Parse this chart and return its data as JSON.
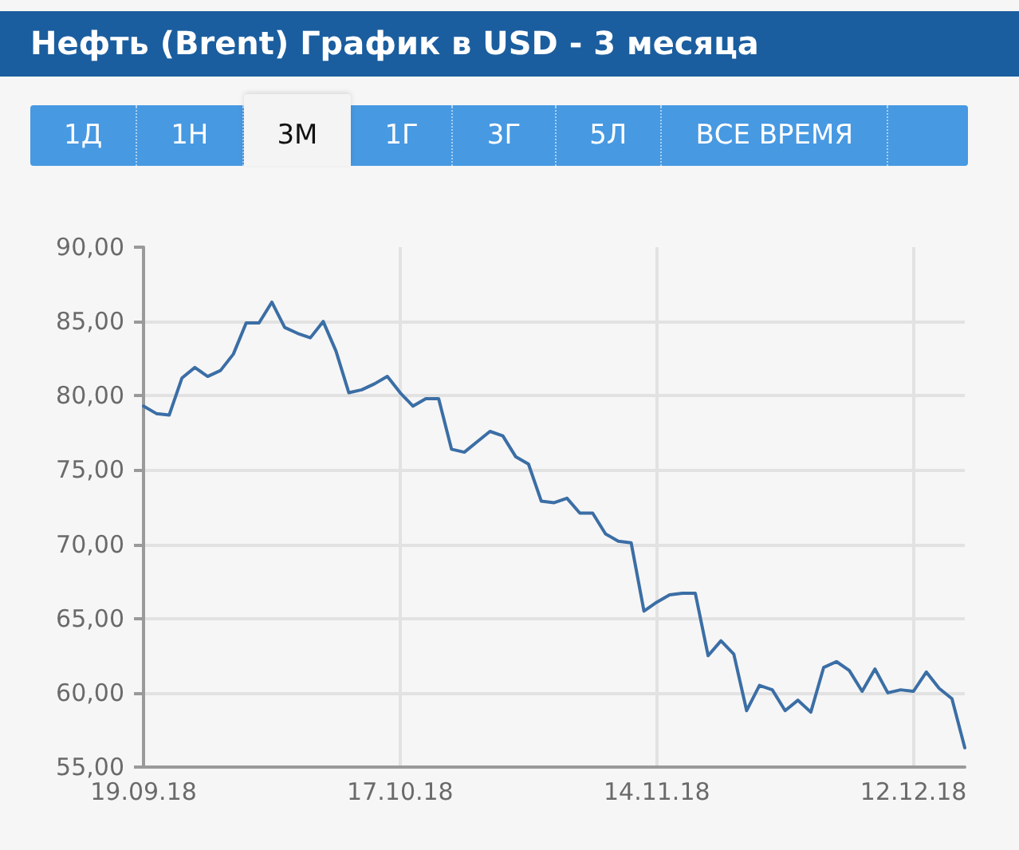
{
  "chart_data": {
    "type": "line",
    "title": "Нефть (Brent) График в USD - 3 месяца",
    "annotations": [
      "1Д",
      "1Н",
      "3М",
      "1Г",
      "3Г",
      "5Л",
      "ВСЕ ВРЕМЯ"
    ],
    "categories": [
      "19.09.18",
      null,
      null,
      null,
      null,
      null,
      null,
      null,
      null,
      null,
      null,
      null,
      null,
      null,
      null,
      null,
      null,
      null,
      null,
      null,
      "17.10.18",
      null,
      null,
      null,
      null,
      null,
      null,
      null,
      null,
      null,
      null,
      null,
      null,
      null,
      null,
      null,
      null,
      null,
      null,
      null,
      "14.11.18",
      null,
      null,
      null,
      null,
      null,
      null,
      null,
      null,
      null,
      null,
      null,
      null,
      null,
      null,
      null,
      null,
      null,
      null,
      null,
      "12.12.18",
      null,
      null,
      null,
      null
    ],
    "color": "#3b6ea5",
    "values": [
      79.3,
      78.8,
      78.7,
      81.2,
      81.9,
      81.3,
      81.7,
      82.8,
      84.9,
      84.9,
      86.3,
      84.6,
      84.2,
      83.9,
      85.0,
      83.0,
      80.2,
      80.4,
      80.8,
      81.3,
      80.2,
      79.3,
      79.8,
      79.8,
      76.4,
      76.2,
      76.9,
      77.6,
      77.3,
      75.9,
      75.4,
      72.9,
      72.8,
      73.1,
      72.1,
      72.1,
      70.7,
      70.2,
      70.1,
      65.5,
      66.1,
      66.6,
      66.7,
      66.7,
      62.5,
      63.5,
      62.6,
      58.8,
      60.5,
      60.2,
      58.8,
      59.5,
      58.7,
      61.7,
      62.1,
      61.5,
      60.1,
      61.6,
      60.0,
      60.2,
      60.1,
      61.4,
      60.3,
      59.6,
      56.3
    ],
    "ylim": [
      55,
      90
    ],
    "yticks": [
      {
        "value": 55,
        "label": "55,00"
      },
      {
        "value": 60,
        "label": "60,00"
      },
      {
        "value": 65,
        "label": "65,00"
      },
      {
        "value": 70,
        "label": "70,00"
      },
      {
        "value": 75,
        "label": "75,00"
      },
      {
        "value": 80,
        "label": "80,00"
      },
      {
        "value": 85,
        "label": "85,00"
      },
      {
        "value": 90,
        "label": "90,00"
      }
    ],
    "grid": true
  }
}
